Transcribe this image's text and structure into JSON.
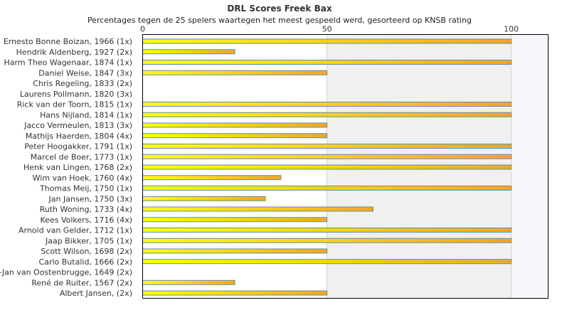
{
  "chart_data": {
    "type": "bar",
    "orientation": "horizontal",
    "title": "DRL Scores Freek Bax",
    "subtitle": "Percentages tegen de 25 spelers waartegen het meest gespeeld werd, gesorteerd op KNSB rating",
    "xlabel": "",
    "ylabel": "",
    "xlim": [
      0,
      110
    ],
    "x_ticks": [
      "0",
      "50",
      "100"
    ],
    "grid": true,
    "colors": {
      "bar_start": "#ffff00",
      "bar_end": "#f5a623",
      "bar_stroke": "#5b8fb0",
      "band": "#f0f0f0",
      "frame": "#000000"
    },
    "categories": [
      "Ernesto Bonne Boizan, 1966 (1x)",
      "Hendrik Aldenberg, 1927 (2x)",
      "Harm Theo Wagenaar, 1874 (1x)",
      "Daniel Weise, 1847 (3x)",
      "Chris Regeling, 1833 (2x)",
      "Laurens Pollmann, 1820 (3x)",
      "Rick van der Toorn, 1815 (1x)",
      "Hans Nijland, 1814 (1x)",
      "Jacco Vermeulen, 1813 (3x)",
      "Mathijs Haerden, 1804 (4x)",
      "Peter Hoogakker, 1791 (1x)",
      "Marcel de Boer, 1773 (1x)",
      "Henk van Lingen, 1768 (2x)",
      "Wim van Hoek, 1760 (4x)",
      "Thomas Meij, 1750 (1x)",
      "Jan Jansen, 1750 (3x)",
      "Ruth Woning, 1733 (4x)",
      "Kees Volkers, 1716 (4x)",
      "Arnold van Gelder, 1712 (1x)",
      "Jaap Bikker, 1705 (1x)",
      "Scott Wilson, 1698 (2x)",
      "Carlo Butalid, 1666 (2x)",
      "Bert-Jan van Oostenbrugge, 1649 (2x)",
      "René de Ruiter, 1567 (2x)",
      "Albert Jansen, (2x)"
    ],
    "values": [
      100,
      25,
      100,
      50,
      0,
      0,
      100,
      100,
      50,
      50,
      100,
      100,
      100,
      37.5,
      100,
      33.3,
      62.5,
      50,
      100,
      100,
      50,
      100,
      0,
      25,
      50
    ]
  }
}
